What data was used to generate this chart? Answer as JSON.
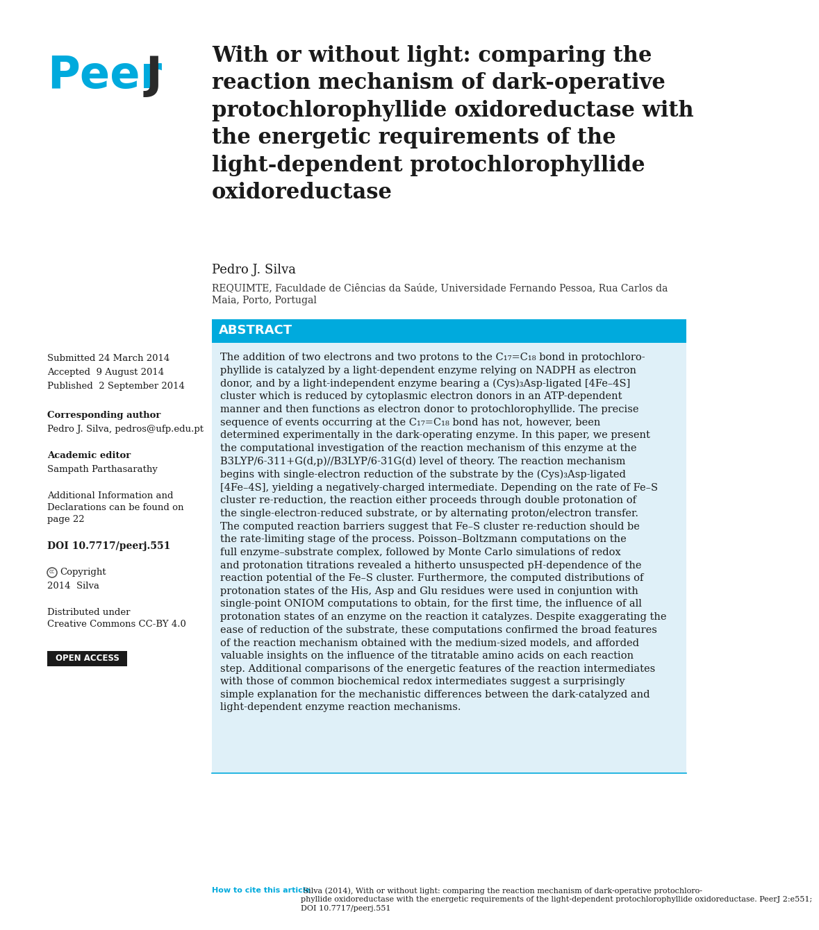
{
  "background_color": "#ffffff",
  "page_width": 10.2,
  "page_height": 13.2,
  "logo_text_peer": "Peer",
  "logo_text_j": "J",
  "logo_color": "#00aadd",
  "title": "With or without light: comparing the\nreaction mechanism of dark-operative\nprotochlorophyllide oxidoreductase with\nthe energetic requirements of the\nlight-dependent protochlorophyllide\noxidoreductase",
  "author": "Pedro J. Silva",
  "affiliation": "REQUIMTE, Faculdade de Ciências da Saúde, Universidade Fernando Pessoa, Rua Carlos da\nMaia, Porto, Portugal",
  "abstract_header": "ABSTRACT",
  "abstract_bg": "#dff0f8",
  "abstract_header_bg": "#00aadd",
  "abstract_header_color": "#ffffff",
  "abstract_text": "The addition of two electrons and two protons to the C₁₇=C₁₈ bond in protochloro-\nphyllide is catalyzed by a light-dependent enzyme relying on NADPH as electron\ndonor, and by a light-independent enzyme bearing a (Cys)₃Asp-ligated [4Fe–4S]\ncluster which is reduced by cytoplasmic electron donors in an ATP-dependent\nmanner and then functions as electron donor to protochlorophyllide. The precise\nsequence of events occurring at the C₁₇=C₁₈ bond has not, however, been\ndetermined experimentally in the dark-operating enzyme. In this paper, we present\nthe computational investigation of the reaction mechanism of this enzyme at the\nB3LYP/6-311+G(d,p)//B3LYP/6-31G(d) level of theory. The reaction mechanism\nbegins with single-electron reduction of the substrate by the (Cys)₃Asp-ligated\n[4Fe–4S], yielding a negatively-charged intermediate. Depending on the rate of Fe–S\ncluster re-reduction, the reaction either proceeds through double protonation of\nthe single-electron-reduced substrate, or by alternating proton/electron transfer.\nThe computed reaction barriers suggest that Fe–S cluster re-reduction should be\nthe rate-limiting stage of the process. Poisson–Boltzmann computations on the\nfull enzyme–substrate complex, followed by Monte Carlo simulations of redox\nand protonation titrations revealed a hitherto unsuspected pH-dependence of the\nreaction potential of the Fe–S cluster. Furthermore, the computed distributions of\nprotonation states of the His, Asp and Glu residues were used in conjuntion with\nsingle-point ONIOM computations to obtain, for the first time, the influence of all\nprotonation states of an enzyme on the reaction it catalyzes. Despite exaggerating the\nease of reduction of the substrate, these computations confirmed the broad features\nof the reaction mechanism obtained with the medium-sized models, and afforded\nvaluable insights on the influence of the titratable amino acids on each reaction\nstep. Additional comparisons of the energetic features of the reaction intermediates\nwith those of common biochemical redox intermediates suggest a surprisingly\nsimple explanation for the mechanistic differences between the dark-catalyzed and\nlight-dependent enzyme reaction mechanisms.",
  "submitted": "Submitted 24 March 2014",
  "accepted": "Accepted  9 August 2014",
  "published": "Published  2 September 2014",
  "corresponding_label": "Corresponding author",
  "corresponding_text": "Pedro J. Silva, pedros@ufp.edu.pt",
  "academic_label": "Academic editor",
  "academic_text": "Sampath Parthasarathy",
  "additional_label": "Additional Information and\nDeclarations can be found on\npage 22",
  "doi_text": "DOI 10.7717/peerj.551",
  "distributed_text": "Distributed under\nCreative Commons CC-BY 4.0",
  "open_access_text": "OPEN ACCESS",
  "open_access_bg": "#1a1a1a",
  "open_access_color": "#ffffff",
  "cite_label": "How to cite this article",
  "cite_label_color": "#00aadd",
  "cite_text": " Silva (2014), With or without light: comparing the reaction mechanism of dark-operative protochloro-\nphyllide oxidoreductase with the energetic requirements of the light-dependent protochlorophyllide oxidoreductase. PeerJ 2:e551;\nDOI 10.7717/peerj.551"
}
